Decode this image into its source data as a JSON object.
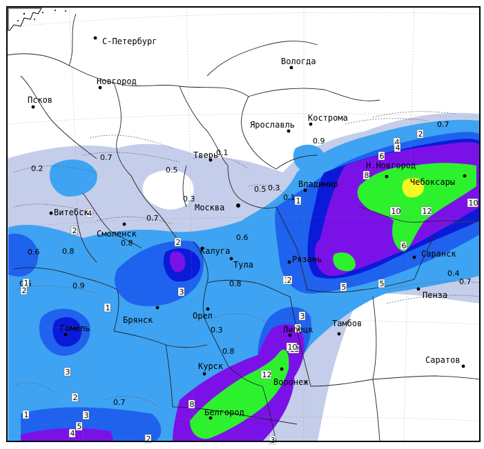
{
  "map": {
    "cities": [
      {
        "name": "С-Петербург",
        "key": "spb"
      },
      {
        "name": "Вологда",
        "key": "vologda"
      },
      {
        "name": "Новгород",
        "key": "novgorod"
      },
      {
        "name": "Псков",
        "key": "pskov"
      },
      {
        "name": "Кострома",
        "key": "kostroma"
      },
      {
        "name": "Ярославль",
        "key": "yaroslavl"
      },
      {
        "name": "Тверь",
        "key": "tver"
      },
      {
        "name": "Н.Новгород",
        "key": "nnovgorod"
      },
      {
        "name": "Владимир",
        "key": "vladimir"
      },
      {
        "name": "Чебоксары",
        "key": "cheboksary"
      },
      {
        "name": "Москва",
        "key": "moskva"
      },
      {
        "name": "Витебск",
        "key": "vitebsk"
      },
      {
        "name": "Смоленск",
        "key": "smolensk"
      },
      {
        "name": "Калуга",
        "key": "kaluga"
      },
      {
        "name": "Тула",
        "key": "tula"
      },
      {
        "name": "Рязань",
        "key": "ryazan"
      },
      {
        "name": "Саранск",
        "key": "saransk"
      },
      {
        "name": "Брянск",
        "key": "bryansk"
      },
      {
        "name": "Орел",
        "key": "orel"
      },
      {
        "name": "Пенза",
        "key": "penza"
      },
      {
        "name": "Гомель",
        "key": "gomel"
      },
      {
        "name": "Липецк",
        "key": "lipetsk"
      },
      {
        "name": "Тамбов",
        "key": "tambov"
      },
      {
        "name": "Курск",
        "key": "kursk"
      },
      {
        "name": "Воронеж",
        "key": "voronezh"
      },
      {
        "name": "Саратов",
        "key": "saratov"
      },
      {
        "name": "Белгород",
        "key": "belgorod"
      }
    ],
    "contour_labels": [
      "0.7",
      "0.5",
      "0.3",
      "0.1",
      "0.2",
      "0.7",
      "0.8",
      "0.6",
      "0.9",
      "0.6",
      "0.8",
      "0.3",
      "0.8",
      "0.6",
      "0.7",
      "0.3",
      "0.1",
      "0.9",
      "0.7",
      "0.4",
      "0.8",
      "0.5",
      "0.7"
    ],
    "boxed_labels": [
      "4",
      "2",
      "3",
      "2",
      "1",
      "2",
      "3",
      "2",
      "1",
      "3",
      "2",
      "4",
      "5",
      "3",
      "1",
      "2",
      "4",
      "5",
      "10",
      "12",
      "6",
      "5",
      "10",
      "12",
      "8",
      "7",
      "10",
      "4",
      "1",
      "3",
      "3",
      "12",
      "8",
      "6",
      "2"
    ],
    "legend_colors": {
      "level_0_5": "#c4cdea",
      "level_1": "#3ea3f2",
      "level_2": "#1f62ee",
      "level_3": "#0a1ad8",
      "level_5": "#7a12e8",
      "level_10": "#2ef12e",
      "level_15": "#f7f724"
    }
  }
}
